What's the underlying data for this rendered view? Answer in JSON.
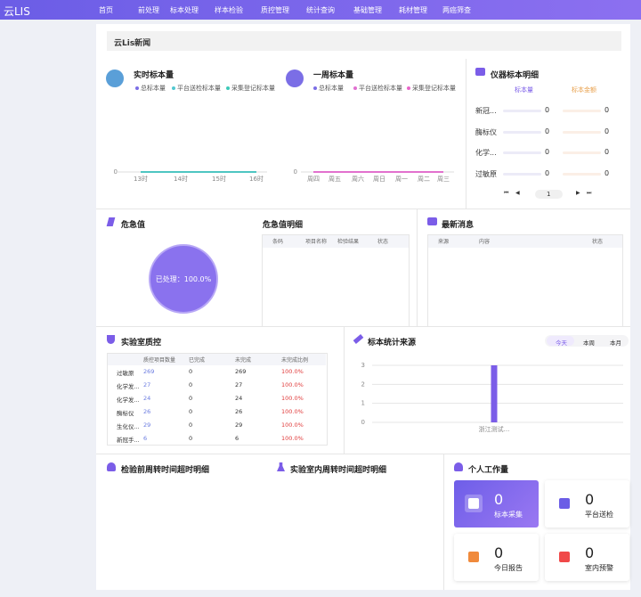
{
  "header": {
    "brand": "云LIS",
    "nav": [
      "首页",
      "前处理",
      "标本处理",
      "样本检验",
      "质控管理",
      "统计查询",
      "基础管理",
      "耗材管理",
      "两癌筛查"
    ]
  },
  "news_title": "云Lis新闻",
  "chart_data": [
    {
      "type": "line",
      "title": "实时标本量",
      "categories": [
        "13时",
        "14时",
        "15时",
        "16时"
      ],
      "ylim": [
        0,
        1
      ],
      "yticks": [
        0
      ],
      "series": [
        {
          "name": "总标本量",
          "color": "#7b6ee6",
          "values": [
            0,
            0,
            0,
            0
          ]
        },
        {
          "name": "平台送检标本量",
          "color": "#52c8d0",
          "values": [
            0,
            0,
            0,
            0
          ]
        },
        {
          "name": "采集登记标本量",
          "color": "#3cc9b8",
          "values": [
            0,
            0,
            0,
            0
          ]
        }
      ]
    },
    {
      "type": "line",
      "title": "一周标本量",
      "categories": [
        "周四",
        "周五",
        "周六",
        "周日",
        "周一",
        "周二",
        "周三"
      ],
      "ylim": [
        0,
        1
      ],
      "yticks": [
        0
      ],
      "series": [
        {
          "name": "总标本量",
          "color": "#7b6ee6",
          "values": [
            0,
            0,
            0,
            0,
            0,
            0,
            0
          ]
        },
        {
          "name": "平台送检标本量",
          "color": "#e070d0",
          "values": [
            0,
            0,
            0,
            0,
            0,
            0,
            0
          ]
        },
        {
          "name": "采集登记标本量",
          "color": "#e866c8",
          "values": [
            0,
            0,
            0,
            0,
            0,
            0,
            0
          ]
        }
      ]
    },
    {
      "type": "pie",
      "title": "危急值",
      "values": [
        100
      ],
      "value_labels": [
        "已处理：100.0%"
      ],
      "color": "#8a72ee"
    },
    {
      "type": "bar",
      "title": "标本统计来源",
      "categories": [
        "浙江测试..."
      ],
      "values": [
        3
      ],
      "color": "#7b5de8",
      "ylim": [
        0,
        3
      ],
      "yticks": [
        0,
        1,
        2,
        3
      ],
      "grid": true,
      "tabs": [
        "今天",
        "本周",
        "本月"
      ]
    }
  ],
  "instruments": {
    "title": "仪器标本明细",
    "columns": [
      "标本量",
      "标本金额"
    ],
    "rows": [
      [
        "新冠...",
        0,
        0
      ],
      [
        "酶标仪",
        0,
        0
      ],
      [
        "化学...",
        0,
        0
      ],
      [
        "过敏原",
        0,
        0
      ]
    ],
    "page": 1
  },
  "critical_detail": {
    "title": "危急值明细",
    "headers": [
      "条码",
      "项目名称",
      "检验结果",
      "状态"
    ]
  },
  "latest_news": {
    "title": "最新消息",
    "headers": [
      "来源",
      "内容",
      "状态"
    ]
  },
  "qc": {
    "title": "实验室质控",
    "headers": [
      "质控项目数量",
      "已完成",
      "未完成",
      "未完成比例"
    ],
    "rows": [
      [
        "过敏原",
        269,
        0,
        269,
        "100.0%"
      ],
      [
        "化学发...",
        27,
        0,
        27,
        "100.0%"
      ],
      [
        "化学发...",
        24,
        0,
        24,
        "100.0%"
      ],
      [
        "酶标仪",
        26,
        0,
        26,
        "100.0%"
      ],
      [
        "生化仪...",
        29,
        0,
        29,
        "100.0%"
      ],
      [
        "新冠手...",
        6,
        0,
        6,
        "100.0%"
      ]
    ]
  },
  "turnaround": [
    "检验前周转时间超时明细",
    "实验室内周转时间超时明细"
  ],
  "workload": {
    "title": "个人工作量",
    "cards": [
      {
        "value": 0,
        "label": "标本采集"
      },
      {
        "value": 0,
        "label": "平台送检"
      },
      {
        "value": 0,
        "label": "今日报告"
      },
      {
        "value": 0,
        "label": "室内预警"
      }
    ]
  }
}
